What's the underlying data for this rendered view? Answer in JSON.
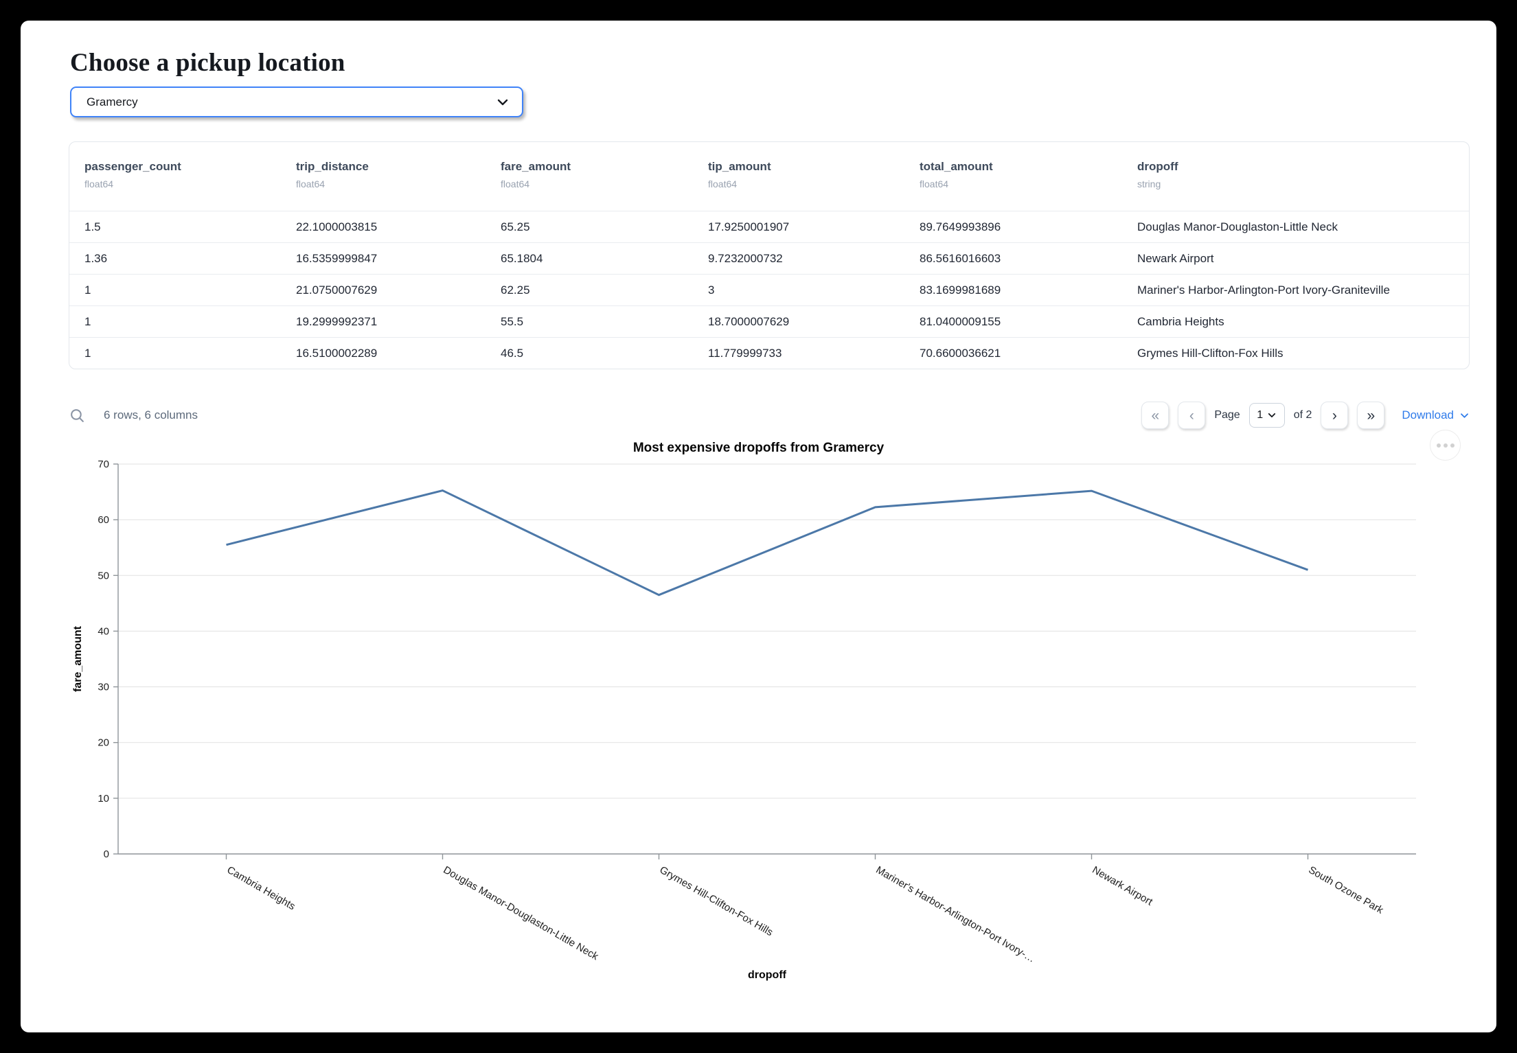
{
  "page": {
    "title": "Choose a pickup location"
  },
  "pickup_select": {
    "value": "Gramercy"
  },
  "table": {
    "columns": [
      {
        "name": "passenger_count",
        "type": "float64"
      },
      {
        "name": "trip_distance",
        "type": "float64"
      },
      {
        "name": "fare_amount",
        "type": "float64"
      },
      {
        "name": "tip_amount",
        "type": "float64"
      },
      {
        "name": "total_amount",
        "type": "float64"
      },
      {
        "name": "dropoff",
        "type": "string"
      }
    ],
    "rows": [
      [
        "1.5",
        "22.1000003815",
        "65.25",
        "17.9250001907",
        "89.7649993896",
        "Douglas Manor-Douglaston-Little Neck"
      ],
      [
        "1.36",
        "16.5359999847",
        "65.1804",
        "9.7232000732",
        "86.5616016603",
        "Newark Airport"
      ],
      [
        "1",
        "21.0750007629",
        "62.25",
        "3",
        "83.1699981689",
        "Mariner's Harbor-Arlington-Port Ivory-Graniteville"
      ],
      [
        "1",
        "19.2999992371",
        "55.5",
        "18.7000007629",
        "81.0400009155",
        "Cambria Heights"
      ],
      [
        "1",
        "16.5100002289",
        "46.5",
        "11.779999733",
        "70.6600036621",
        "Grymes Hill-Clifton-Fox Hills"
      ]
    ],
    "summary": "6 rows, 6 columns",
    "pagination": {
      "page_label": "Page",
      "page_value": "1",
      "of_label": "of 2",
      "download_label": "Download"
    }
  },
  "icons": {
    "first_page": "«",
    "prev_page": "‹",
    "next_page": "›",
    "last_page": "»"
  },
  "chart_data": {
    "type": "line",
    "title": "Most expensive dropoffs from Gramercy",
    "xlabel": "dropoff",
    "ylabel": "fare_amount",
    "categories": [
      "Cambria Heights",
      "Douglas Manor-Douglaston-Little Neck",
      "Grymes Hill-Clifton-Fox Hills",
      "Mariner's Harbor-Arlington-Port Ivory-Graniteville",
      "Newark Airport",
      "South Ozone Park"
    ],
    "xtick_labels": [
      "Cambria Heights",
      "Douglas Manor-Douglaston-Little Neck",
      "Grymes Hill-Clifton-Fox Hills",
      "Mariner's Harbor-Arlington-Port Ivory-…",
      "Newark Airport",
      "South Ozone Park"
    ],
    "values": [
      55.5,
      65.25,
      46.5,
      62.25,
      65.1804,
      51
    ],
    "ylim": [
      0,
      70
    ],
    "ytick_step": 10,
    "grid": true,
    "legend": false,
    "line_color": "#4c78a8",
    "grid_color": "#e1e1e1",
    "axis_color": "#8f9499",
    "label_color": "#1f1f1f"
  },
  "colors": {
    "focus_blue": "#3f83f8",
    "link_blue": "#2f7bea",
    "header_text": "#3e4a5b",
    "muted_text": "#5d6a7b"
  }
}
